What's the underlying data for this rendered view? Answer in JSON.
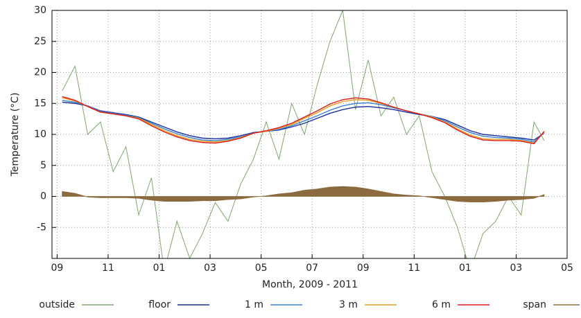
{
  "chart_data": {
    "type": "line",
    "x_label": "Month, 2009 - 2011",
    "y_label": "Temperature (°C)",
    "x": [
      0.2,
      0.7,
      1.2,
      1.7,
      2.2,
      2.7,
      3.2,
      3.7,
      4.2,
      4.7,
      5.2,
      5.7,
      6.2,
      6.7,
      7.2,
      7.7,
      8.2,
      8.7,
      9.2,
      9.7,
      10.2,
      10.7,
      11.2,
      11.7,
      12.2,
      12.7,
      13.2,
      13.7,
      14.2,
      14.7,
      15.2,
      15.7,
      16.2,
      16.7,
      17.2,
      17.7,
      18.2,
      18.7,
      19.1
    ],
    "series": [
      {
        "name": "outside",
        "color": "#7fa66f",
        "values": [
          17,
          21,
          10,
          12,
          4,
          8,
          -3,
          3,
          -12,
          -4,
          -10,
          -6,
          -1,
          -4,
          2,
          6,
          12,
          6,
          15,
          10,
          18,
          25,
          30,
          14,
          22,
          13,
          16,
          10,
          13,
          4,
          0,
          -5,
          -12,
          -6,
          -4,
          0,
          -3,
          12,
          9
        ]
      },
      {
        "name": "floor",
        "color": "#1a2ea0",
        "values": [
          15.2,
          15,
          14.6,
          13.8,
          13.5,
          13.2,
          12.8,
          12,
          11.2,
          10.4,
          9.8,
          9.4,
          9.3,
          9.4,
          9.8,
          10.3,
          10.5,
          10.7,
          11.2,
          11.8,
          12.6,
          13.4,
          14,
          14.4,
          14.5,
          14.3,
          14,
          13.6,
          13.2,
          12.9,
          12.4,
          11.5,
          10.6,
          10,
          9.8,
          9.6,
          9.4,
          9.1,
          10.2
        ]
      },
      {
        "name": "1 m",
        "color": "#3a7fd0",
        "values": [
          15.5,
          15.2,
          14.6,
          13.7,
          13.4,
          13.1,
          12.7,
          11.8,
          10.9,
          10.1,
          9.5,
          9.1,
          9,
          9.2,
          9.6,
          10.2,
          10.5,
          10.8,
          11.4,
          12.2,
          13,
          13.9,
          14.6,
          15,
          15.1,
          14.8,
          14.3,
          13.8,
          13.3,
          12.9,
          12.2,
          11.2,
          10.3,
          9.7,
          9.5,
          9.4,
          9.2,
          8.8,
          10.3
        ]
      },
      {
        "name": "3 m",
        "color": "#e0a020",
        "values": [
          15.9,
          15.4,
          14.5,
          13.6,
          13.3,
          13,
          12.6,
          11.6,
          10.6,
          9.8,
          9.2,
          8.9,
          8.8,
          9,
          9.5,
          10.2,
          10.5,
          11,
          11.6,
          12.6,
          13.5,
          14.6,
          15.3,
          15.6,
          15.5,
          15,
          14.4,
          13.8,
          13.3,
          12.8,
          12,
          10.9,
          9.9,
          9.3,
          9.2,
          9.2,
          9,
          8.6,
          10.4
        ]
      },
      {
        "name": "6 m",
        "color": "#e01818",
        "values": [
          16.1,
          15.5,
          14.5,
          13.6,
          13.3,
          13,
          12.5,
          11.4,
          10.4,
          9.6,
          9,
          8.7,
          8.6,
          8.9,
          9.4,
          10.2,
          10.6,
          11.1,
          11.8,
          12.8,
          13.8,
          14.9,
          15.6,
          15.9,
          15.7,
          15.1,
          14.4,
          13.8,
          13.3,
          12.7,
          11.9,
          10.7,
          9.7,
          9.1,
          9,
          9,
          8.9,
          8.5,
          10.5
        ]
      },
      {
        "name": "span",
        "color": "#8c6a3f",
        "values": [
          0.8,
          0.5,
          -0.1,
          -0.2,
          -0.2,
          -0.2,
          -0.3,
          -0.6,
          -0.8,
          -0.8,
          -0.8,
          -0.7,
          -0.7,
          -0.5,
          -0.4,
          -0.1,
          0.1,
          0.4,
          0.6,
          1,
          1.2,
          1.5,
          1.6,
          1.5,
          1.2,
          0.8,
          0.4,
          0.2,
          0.1,
          -0.2,
          -0.5,
          -0.8,
          -0.9,
          -0.9,
          -0.8,
          -0.6,
          -0.5,
          -0.3,
          0.3
        ]
      }
    ],
    "xlim": [
      -0.2,
      20
    ],
    "xticks": [
      {
        "value": 0,
        "label": "09"
      },
      {
        "value": 2,
        "label": "11"
      },
      {
        "value": 4,
        "label": "01"
      },
      {
        "value": 6,
        "label": "03"
      },
      {
        "value": 8,
        "label": "05"
      },
      {
        "value": 10,
        "label": "07"
      },
      {
        "value": 12,
        "label": "09"
      },
      {
        "value": 14,
        "label": "11"
      },
      {
        "value": 16,
        "label": "01"
      },
      {
        "value": 18,
        "label": "03"
      },
      {
        "value": 20,
        "label": "05"
      }
    ],
    "ylim": [
      -10,
      30
    ],
    "yticks": [
      -5,
      0,
      5,
      10,
      15,
      20,
      25,
      30
    ],
    "grid": true,
    "legend": "bottom"
  }
}
